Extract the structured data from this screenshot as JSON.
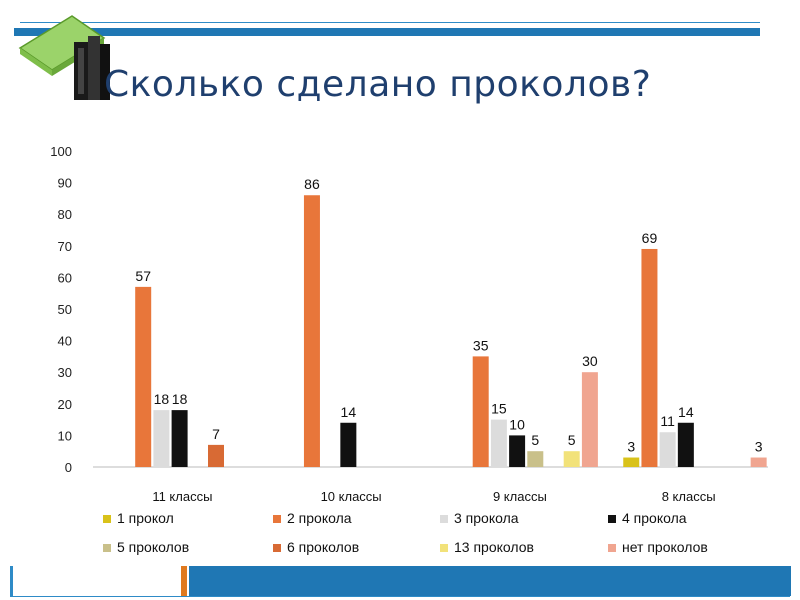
{
  "slide": {
    "title": "Сколько сделано проколов?"
  },
  "colors": {
    "accent_blue": "#1f77b4",
    "title_color": "#1f3f6e",
    "accent_orange": "#e07a1f"
  },
  "chart_data": {
    "type": "bar",
    "title": "",
    "xlabel": "",
    "ylabel": "",
    "ylim": [
      0,
      100
    ],
    "yticks": [
      0,
      10,
      20,
      30,
      40,
      50,
      60,
      70,
      80,
      90,
      100
    ],
    "categories": [
      "11 классы",
      "10 классы",
      "9 классы",
      "8 классы"
    ],
    "legend_position": "bottom",
    "grid": false,
    "series": [
      {
        "name": "1 прокол",
        "color": "#d9c21a",
        "values": [
          null,
          null,
          null,
          3
        ]
      },
      {
        "name": "2 прокола",
        "color": "#e8763a",
        "values": [
          57,
          86,
          35,
          69
        ]
      },
      {
        "name": "3 прокола",
        "color": "#dcdcdc",
        "values": [
          18,
          null,
          15,
          11
        ]
      },
      {
        "name": "4 прокола",
        "color": "#111111",
        "values": [
          18,
          14,
          10,
          14
        ]
      },
      {
        "name": "5 проколов",
        "color": "#c9c08a",
        "values": [
          null,
          null,
          5,
          null
        ]
      },
      {
        "name": "6 проколов",
        "color": "#d86a34",
        "values": [
          7,
          null,
          null,
          null
        ]
      },
      {
        "name": "13 проколов",
        "color": "#f2e27a",
        "values": [
          null,
          null,
          5,
          null
        ]
      },
      {
        "name": "нет проколов",
        "color": "#f0a590",
        "values": [
          null,
          null,
          30,
          3
        ]
      }
    ]
  }
}
